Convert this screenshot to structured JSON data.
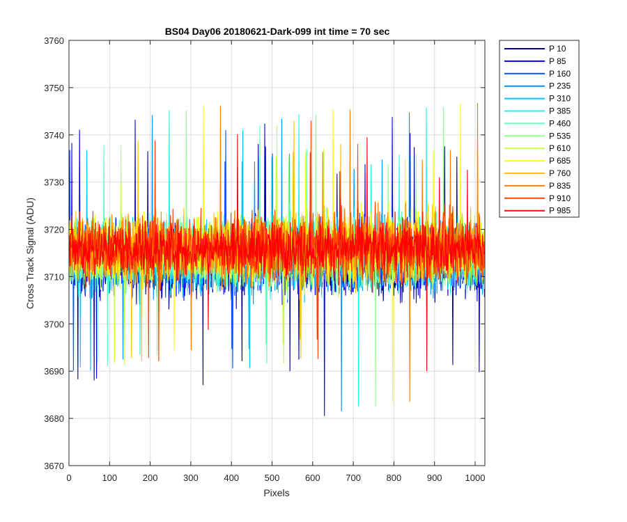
{
  "chart_data": {
    "type": "line",
    "title": "BS04 Day06 20180621-Dark-099 int time = 70 sec",
    "xlabel": "Pixels",
    "ylabel": "Cross Track Signal (ADU)",
    "xlim": [
      0,
      1024
    ],
    "ylim": [
      3670,
      3760
    ],
    "xticks": [
      0,
      100,
      200,
      300,
      400,
      500,
      600,
      700,
      800,
      900,
      1000
    ],
    "yticks": [
      3670,
      3680,
      3690,
      3700,
      3710,
      3720,
      3730,
      3740,
      3750,
      3760
    ],
    "grid": true,
    "legend_position": "outside-top-right",
    "description_of_values": "Noisy dark-frame signal per pixel; each series fluctuates around roughly 3713-3718 ADU with spikes from about 3676 to 3759",
    "series": [
      {
        "name": "P 10",
        "color": "#00008f",
        "mean": 3713,
        "spread": 15
      },
      {
        "name": "P 85",
        "color": "#0000ef",
        "mean": 3713,
        "spread": 15
      },
      {
        "name": "P 160",
        "color": "#0050ff",
        "mean": 3714,
        "spread": 15
      },
      {
        "name": "P 235",
        "color": "#0090ff",
        "mean": 3714,
        "spread": 15
      },
      {
        "name": "P 310",
        "color": "#00c8ff",
        "mean": 3714,
        "spread": 15
      },
      {
        "name": "P 385",
        "color": "#20f0f0",
        "mean": 3715,
        "spread": 15
      },
      {
        "name": "P 460",
        "color": "#60ffc0",
        "mean": 3715,
        "spread": 15
      },
      {
        "name": "P 535",
        "color": "#90ff90",
        "mean": 3715,
        "spread": 15
      },
      {
        "name": "P 610",
        "color": "#c8ff40",
        "mean": 3715,
        "spread": 15
      },
      {
        "name": "P 685",
        "color": "#ffff00",
        "mean": 3716,
        "spread": 15
      },
      {
        "name": "P 760",
        "color": "#ffc000",
        "mean": 3716,
        "spread": 15
      },
      {
        "name": "P 835",
        "color": "#ff8000",
        "mean": 3716,
        "spread": 15
      },
      {
        "name": "P 910",
        "color": "#ff4000",
        "mean": 3716,
        "spread": 15
      },
      {
        "name": "P 985",
        "color": "#ff0000",
        "mean": 3716,
        "spread": 12
      }
    ]
  }
}
